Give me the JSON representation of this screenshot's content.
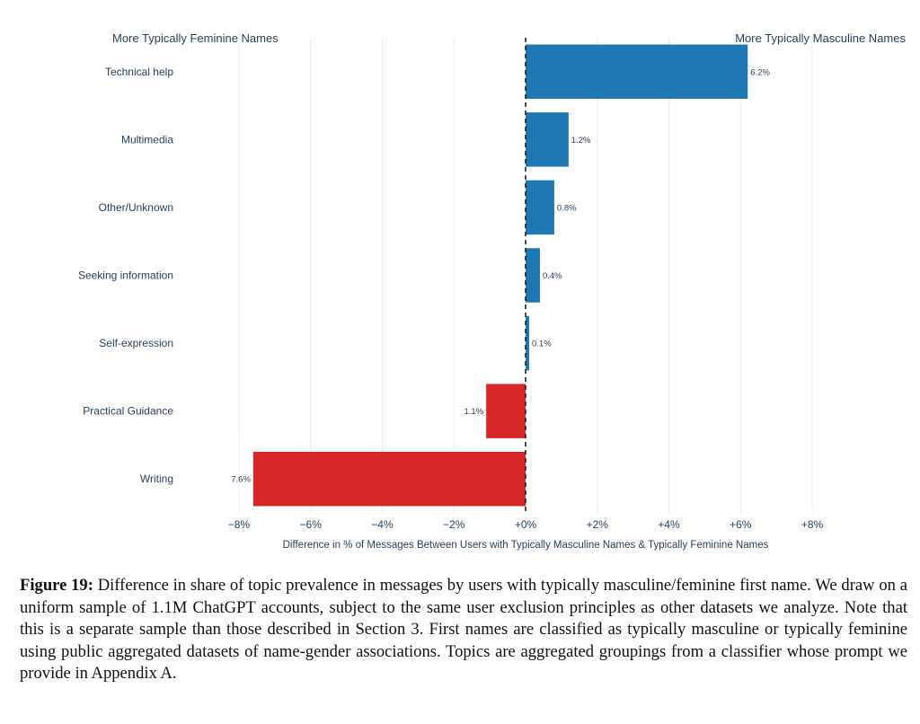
{
  "chart_data": {
    "type": "bar",
    "orientation": "horizontal",
    "categories": [
      "Technical help",
      "Multimedia",
      "Other/Unknown",
      "Seeking information",
      "Self-expression",
      "Practical Guidance",
      "Writing"
    ],
    "values": [
      6.2,
      1.2,
      0.8,
      0.4,
      0.1,
      -1.1,
      -7.6
    ],
    "value_labels": [
      "6.2%",
      "1.2%",
      "0.8%",
      "0.4%",
      "0.1%",
      "1.1%",
      "7.6%"
    ],
    "xlim": [
      -8.5,
      8.5
    ],
    "x_ticks": [
      -8,
      -6,
      -4,
      -2,
      0,
      2,
      4,
      6,
      8
    ],
    "x_tick_labels": [
      "−8%",
      "−6%",
      "−4%",
      "−2%",
      "+0%",
      "+2%",
      "+4%",
      "+6%",
      "+8%"
    ],
    "xlabel": "Difference in % of Messages Between Users with Typically Masculine Names & Typically Feminine Names",
    "left_annotation": "More Typically Feminine Names",
    "right_annotation": "More Typically Masculine Names",
    "positive_color": "#1f77b4",
    "negative_color": "#d62728",
    "grid": true
  },
  "caption": {
    "label": "Figure 19:",
    "text": "Difference in share of topic prevalence in messages by users with typically masculine/feminine first name. We draw on a uniform sample of 1.1M ChatGPT accounts, subject to the same user exclusion principles as other datasets we analyze. Note that this is a separate sample than those described in Section 3. First names are classified as typically masculine or typically feminine using public aggregated datasets of name-gender associations. Topics are aggregated groupings from a classifier whose prompt we provide in Appendix A."
  }
}
